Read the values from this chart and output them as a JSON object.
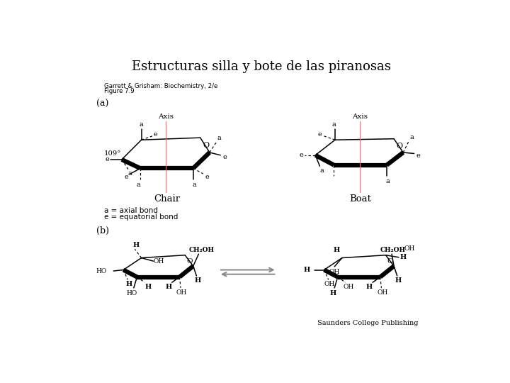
{
  "title": "Estructuras silla y bote de las piranosas",
  "title_fontsize": 13,
  "bg_color": "#ffffff",
  "ref_text1": "Garrett & Grisham: Biochemistry, 2/e",
  "ref_text2": "Figure 7.9",
  "label_a": "(a)",
  "label_b": "(b)",
  "legend_a": "a = axial bond",
  "legend_e": "e = equatorial bond",
  "chair_label": "Chair",
  "boat_label": "Boat",
  "publisher": "Saunders College Publishing",
  "axis_color": "#d08080",
  "thick_lw": 4.5,
  "thin_lw": 1.1,
  "dash_lw": 0.85,
  "label_fs": 7.5,
  "ring_label_fs": 8.0
}
